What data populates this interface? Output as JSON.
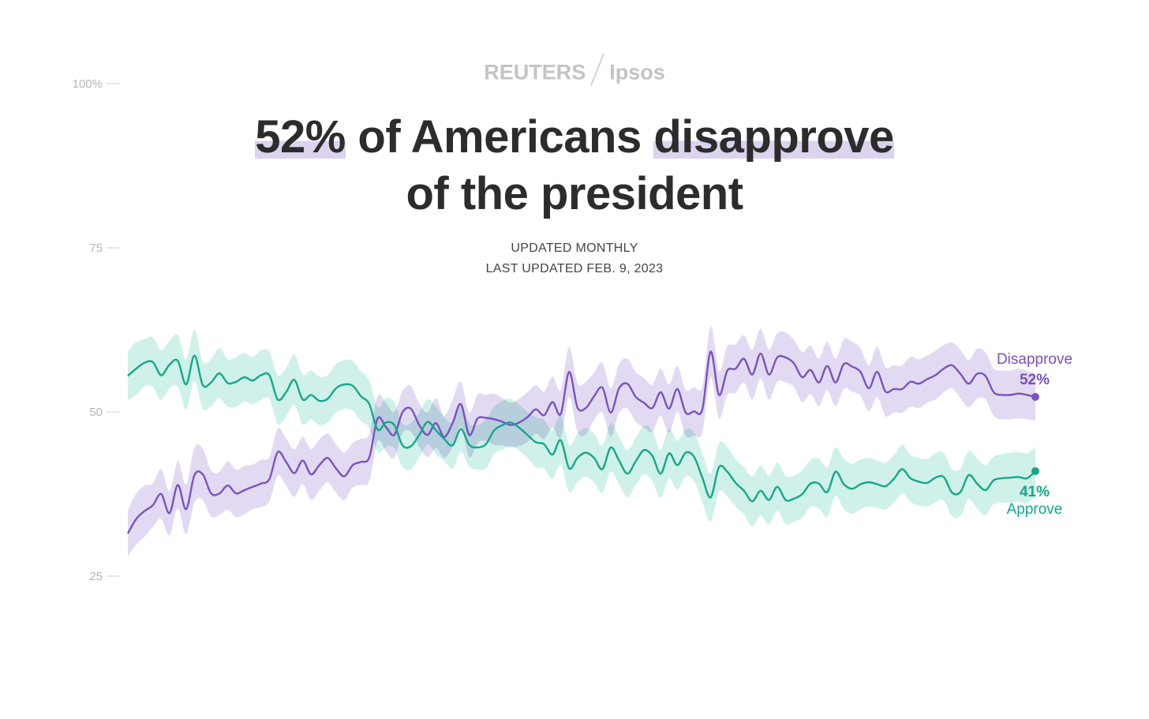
{
  "brand": {
    "left": "REUTERS",
    "right": "Ipsos"
  },
  "title": {
    "highlight1": "52%",
    "middle": " of Americans ",
    "highlight2": "disapprove",
    "line2": "of the president"
  },
  "subtitle": {
    "line1": "UPDATED MONTHLY",
    "line2": "LAST UPDATED FEB. 9, 2023"
  },
  "colors": {
    "approve": "#13a88a",
    "approve_band": "#c7efe5",
    "disapprove": "#7952c0",
    "disapprove_band": "#ddd3f0",
    "axis_text": "#b3b3b3",
    "axis_tick": "#cccccc"
  },
  "chart_data": {
    "type": "line",
    "title": "52% of Americans disapprove of the president",
    "ylim": [
      15,
      100
    ],
    "xlim": [
      0,
      149
    ],
    "yticks": [
      25,
      50,
      75,
      100
    ],
    "ytick_labels": [
      "25",
      "50",
      "75",
      "100%"
    ],
    "series": [
      {
        "name": "Disapprove",
        "end_label": "Disapprove",
        "end_value_label": "52%",
        "values": [
          31.5,
          33.7,
          34.9,
          35.8,
          37.5,
          34.6,
          38.9,
          35.2,
          40.4,
          40.5,
          37.6,
          37.6,
          38.8,
          37.6,
          38.1,
          38.6,
          39.1,
          39.8,
          43.9,
          42.4,
          40.7,
          42.6,
          40.5,
          41.9,
          43.0,
          41.4,
          40.2,
          41.9,
          42.4,
          43.1,
          49.0,
          47.7,
          46.5,
          50.0,
          50.5,
          48.0,
          46.5,
          48.3,
          46.2,
          48.3,
          51.2,
          46.5,
          49.0,
          49.1,
          48.9,
          48.5,
          48.0,
          48.4,
          49.2,
          50.4,
          49.5,
          51.5,
          49.7,
          56.1,
          50.7,
          50.6,
          52.4,
          53.7,
          49.9,
          53.6,
          54.3,
          52.3,
          51.4,
          50.6,
          53.0,
          50.5,
          53.5,
          49.9,
          50.1,
          50.4,
          59.2,
          52.6,
          56.3,
          56.6,
          58.1,
          55.7,
          58.9,
          55.7,
          58.3,
          58.3,
          57.4,
          55.3,
          56.4,
          54.5,
          57.0,
          54.5,
          57.3,
          56.9,
          56.1,
          53.6,
          56.1,
          53.1,
          53.5,
          53.5,
          54.6,
          54.3,
          55.0,
          55.6,
          56.6,
          57.1,
          55.8,
          54.3,
          55.8,
          55.5,
          53.0,
          52.6,
          52.6,
          52.8,
          52.6,
          52.3
        ],
        "lower": [
          28.0,
          29.8,
          31.0,
          32.5,
          33.7,
          31.2,
          35.3,
          31.4,
          36.2,
          36.6,
          34.1,
          34.3,
          35.1,
          34.0,
          34.4,
          35.2,
          35.5,
          36.4,
          40.3,
          38.8,
          37.1,
          39.0,
          36.6,
          38.0,
          39.3,
          37.7,
          36.6,
          38.5,
          38.9,
          39.5,
          45.6,
          44.0,
          43.0,
          46.8,
          47.0,
          44.7,
          43.1,
          44.5,
          43.0,
          44.7,
          47.8,
          43.1,
          45.3,
          45.6,
          45.0,
          44.9,
          44.6,
          44.8,
          45.4,
          46.7,
          45.9,
          47.6,
          46.1,
          52.3,
          47.0,
          46.6,
          48.8,
          49.9,
          46.2,
          49.9,
          50.5,
          48.5,
          47.6,
          47.0,
          49.4,
          46.8,
          50.0,
          46.4,
          46.4,
          46.9,
          55.3,
          49.0,
          52.6,
          52.9,
          54.5,
          51.9,
          55.1,
          51.9,
          54.6,
          54.5,
          53.8,
          51.5,
          52.7,
          50.9,
          53.3,
          50.9,
          53.5,
          53.1,
          52.5,
          50.1,
          52.3,
          49.4,
          49.9,
          49.9,
          50.8,
          50.6,
          51.4,
          51.9,
          53.0,
          53.6,
          52.1,
          50.7,
          52.0,
          51.9,
          49.4,
          48.9,
          48.9,
          49.0,
          48.9,
          48.7
        ],
        "upper": [
          35.0,
          37.6,
          38.8,
          39.1,
          41.3,
          38.0,
          42.5,
          39.0,
          44.6,
          44.4,
          41.1,
          40.9,
          42.5,
          41.2,
          41.8,
          42.0,
          42.7,
          43.2,
          47.5,
          46.0,
          44.3,
          46.2,
          44.4,
          45.8,
          46.7,
          45.1,
          43.8,
          45.3,
          45.9,
          46.7,
          52.4,
          51.4,
          50.0,
          53.2,
          54.0,
          51.3,
          49.9,
          52.1,
          49.4,
          51.9,
          54.6,
          49.9,
          52.7,
          52.6,
          52.8,
          52.1,
          51.4,
          52.0,
          53.0,
          54.1,
          53.1,
          55.4,
          53.3,
          59.9,
          54.4,
          54.6,
          56.0,
          57.5,
          53.6,
          57.3,
          58.1,
          56.1,
          55.2,
          54.2,
          56.6,
          54.2,
          57.0,
          53.4,
          53.8,
          53.9,
          63.1,
          56.2,
          60.0,
          60.3,
          61.7,
          59.5,
          62.7,
          59.5,
          62.0,
          62.1,
          61.0,
          59.1,
          60.1,
          58.1,
          60.7,
          58.1,
          61.1,
          60.7,
          59.7,
          57.1,
          59.9,
          56.8,
          57.1,
          57.1,
          58.4,
          58.0,
          58.6,
          59.3,
          60.2,
          60.6,
          59.5,
          57.9,
          59.6,
          59.1,
          56.6,
          56.3,
          56.3,
          56.6,
          56.3,
          55.9
        ]
      },
      {
        "name": "Approve",
        "end_label": "Approve",
        "end_value_label": "41%",
        "values": [
          55.5,
          56.6,
          57.5,
          57.6,
          55.6,
          57.2,
          57.8,
          54.2,
          58.6,
          54.1,
          54.5,
          55.9,
          54.4,
          54.6,
          55.3,
          54.8,
          55.6,
          55.6,
          51.9,
          53.0,
          54.9,
          51.9,
          52.6,
          51.7,
          52.0,
          53.6,
          54.2,
          54.0,
          52.4,
          51.2,
          47.3,
          48.4,
          48.0,
          44.9,
          44.8,
          46.5,
          48.5,
          47.2,
          45.9,
          44.9,
          47.4,
          45.0,
          44.6,
          45.1,
          47.2,
          48.0,
          48.4,
          47.6,
          46.5,
          45.4,
          45.1,
          43.5,
          45.7,
          41.4,
          43.0,
          43.8,
          43.0,
          41.3,
          44.6,
          42.6,
          40.6,
          42.5,
          44.2,
          43.3,
          40.6,
          43.7,
          41.9,
          43.8,
          43.2,
          40.0,
          37.0,
          41.6,
          40.9,
          39.2,
          38.0,
          36.4,
          38.0,
          36.6,
          38.6,
          36.6,
          36.8,
          37.5,
          39.1,
          39.1,
          37.8,
          40.9,
          39.0,
          38.3,
          39.0,
          39.3,
          39.0,
          38.7,
          39.8,
          41.3,
          39.9,
          39.4,
          39.2,
          40.0,
          40.1,
          37.7,
          37.8,
          40.4,
          39.1,
          38.1,
          39.6,
          39.9,
          40.0,
          40.1,
          39.9,
          41.0
        ],
        "lower": [
          51.8,
          52.6,
          53.9,
          53.8,
          51.8,
          53.6,
          53.9,
          50.4,
          54.7,
          50.5,
          50.9,
          52.1,
          50.8,
          50.8,
          51.6,
          51.2,
          51.8,
          52.0,
          48.2,
          49.3,
          51.1,
          48.1,
          48.9,
          48.0,
          48.4,
          49.9,
          50.5,
          50.2,
          48.6,
          47.6,
          43.9,
          44.7,
          44.5,
          41.6,
          41.3,
          43.1,
          45.1,
          43.6,
          42.6,
          41.4,
          43.9,
          41.7,
          41.2,
          41.4,
          43.6,
          44.3,
          44.8,
          44.1,
          43.0,
          41.6,
          41.4,
          39.8,
          41.9,
          37.8,
          39.3,
          40.1,
          39.3,
          37.7,
          40.9,
          39.0,
          37.0,
          38.9,
          40.5,
          39.5,
          36.9,
          39.9,
          38.2,
          40.2,
          39.5,
          36.3,
          33.3,
          37.9,
          37.1,
          35.6,
          34.4,
          32.6,
          34.2,
          32.9,
          34.9,
          32.9,
          33.3,
          33.9,
          35.5,
          35.3,
          34.0,
          37.2,
          35.2,
          34.5,
          35.2,
          35.6,
          35.4,
          35.1,
          36.2,
          37.6,
          36.3,
          35.8,
          35.6,
          36.2,
          36.5,
          34.1,
          34.2,
          36.7,
          35.3,
          34.3,
          36.0,
          36.2,
          36.2,
          36.3,
          36.1,
          37.3
        ],
        "upper": [
          59.2,
          60.6,
          61.1,
          61.4,
          59.4,
          60.8,
          61.7,
          58.0,
          62.5,
          57.7,
          58.1,
          59.7,
          58.0,
          58.4,
          59.0,
          58.4,
          59.4,
          59.2,
          55.6,
          56.7,
          58.7,
          55.7,
          56.3,
          55.4,
          55.6,
          57.3,
          57.9,
          57.8,
          56.2,
          54.8,
          50.7,
          52.1,
          51.5,
          48.2,
          48.3,
          49.9,
          51.9,
          50.8,
          49.2,
          48.4,
          50.9,
          48.3,
          48.0,
          48.8,
          50.8,
          51.7,
          52.0,
          51.1,
          50.0,
          49.2,
          48.8,
          47.2,
          49.5,
          45.0,
          46.7,
          47.5,
          46.7,
          44.9,
          48.3,
          46.2,
          44.2,
          46.1,
          47.9,
          47.1,
          44.3,
          47.5,
          45.6,
          47.4,
          46.9,
          43.7,
          40.7,
          45.3,
          44.7,
          42.8,
          41.6,
          40.2,
          41.8,
          40.3,
          42.3,
          40.3,
          40.3,
          41.1,
          42.7,
          42.9,
          41.6,
          44.6,
          42.8,
          42.1,
          42.8,
          43.0,
          42.6,
          42.3,
          43.4,
          45.0,
          43.5,
          43.0,
          42.8,
          43.8,
          43.7,
          41.3,
          41.4,
          44.1,
          42.9,
          41.9,
          43.2,
          43.6,
          43.8,
          43.9,
          43.7,
          44.7
        ]
      }
    ]
  }
}
